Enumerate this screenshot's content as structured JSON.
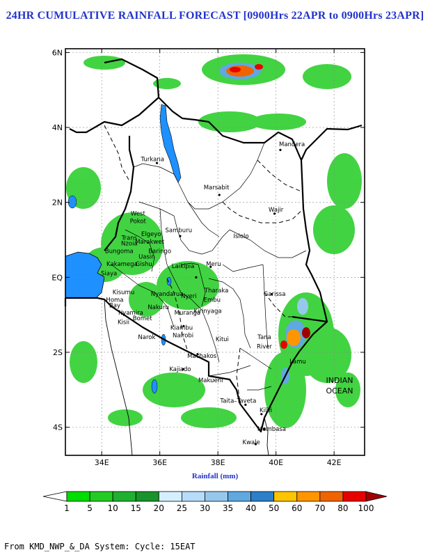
{
  "title": "24HR CUMULATIVE RAINFALL FORECAST [0900Hrs 22APR to 0900Hrs 23APR]",
  "x_axis_label": "Rainfall (mm)",
  "footer": "From KMD_NWP_&_DA System: Cycle: 15EAT",
  "lon_ticks": [
    "34E",
    "36E",
    "38E",
    "40E",
    "42E"
  ],
  "lat_ticks": [
    "6N",
    "4N",
    "2N",
    "EQ",
    "2S",
    "4S"
  ],
  "map_extent": {
    "lon": [
      32.75,
      43.05
    ],
    "lat": [
      -4.75,
      6.1
    ]
  },
  "ocean_label": [
    "INDIAN",
    "OCEAN"
  ],
  "places": [
    {
      "name": "Turkana",
      "lon": 35.75,
      "lat": 3.1
    },
    {
      "name": "Marsabit",
      "lon": 37.95,
      "lat": 2.35
    },
    {
      "name": "Mandera",
      "lon": 40.55,
      "lat": 3.5
    },
    {
      "name": "Wajir",
      "lon": 40.0,
      "lat": 1.75
    },
    {
      "name": "West",
      "lon": 35.25,
      "lat": 1.65
    },
    {
      "name": "Pokot",
      "lon": 35.25,
      "lat": 1.45
    },
    {
      "name": "Samburu",
      "lon": 36.65,
      "lat": 1.2
    },
    {
      "name": "Isiolo",
      "lon": 38.8,
      "lat": 1.05
    },
    {
      "name": "Elgeyo",
      "lon": 35.7,
      "lat": 1.1
    },
    {
      "name": "Marakwet",
      "lon": 35.65,
      "lat": 0.9
    },
    {
      "name": "Baringo",
      "lon": 36.0,
      "lat": 0.65
    },
    {
      "name": "Trans",
      "lon": 34.95,
      "lat": 1.0
    },
    {
      "name": "Nzoia",
      "lon": 34.95,
      "lat": 0.85
    },
    {
      "name": "Uasin",
      "lon": 35.55,
      "lat": 0.5
    },
    {
      "name": "Gishu",
      "lon": 35.45,
      "lat": 0.3
    },
    {
      "name": "Bungoma",
      "lon": 34.6,
      "lat": 0.65
    },
    {
      "name": "Kakamega",
      "lon": 34.7,
      "lat": 0.3
    },
    {
      "name": "Siaya",
      "lon": 34.25,
      "lat": 0.05
    },
    {
      "name": "Kisumu",
      "lon": 34.75,
      "lat": -0.45
    },
    {
      "name": "Homa",
      "lon": 34.45,
      "lat": -0.65
    },
    {
      "name": "Bay",
      "lon": 34.45,
      "lat": -0.8
    },
    {
      "name": "Kisii",
      "lon": 34.75,
      "lat": -1.25
    },
    {
      "name": "Nyamira",
      "lon": 35.0,
      "lat": -1.0
    },
    {
      "name": "Bomet",
      "lon": 35.4,
      "lat": -1.15
    },
    {
      "name": "Nakuru",
      "lon": 35.95,
      "lat": -0.85
    },
    {
      "name": "Nyandarua",
      "lon": 36.25,
      "lat": -0.5
    },
    {
      "name": "Laikipia",
      "lon": 36.8,
      "lat": 0.25
    },
    {
      "name": "Meru",
      "lon": 37.85,
      "lat": 0.3
    },
    {
      "name": "Nyeri",
      "lon": 37.0,
      "lat": -0.55
    },
    {
      "name": "Tharaka",
      "lon": 37.95,
      "lat": -0.4
    },
    {
      "name": "Embu",
      "lon": 37.8,
      "lat": -0.65
    },
    {
      "name": "Kirinyaga",
      "lon": 37.65,
      "lat": -0.95
    },
    {
      "name": "Muranga",
      "lon": 36.95,
      "lat": -1.0
    },
    {
      "name": "Kiambu",
      "lon": 36.75,
      "lat": -1.4
    },
    {
      "name": "Nairobi",
      "lon": 36.8,
      "lat": -1.6
    },
    {
      "name": "Narok",
      "lon": 35.55,
      "lat": -1.65
    },
    {
      "name": "Kitui",
      "lon": 38.15,
      "lat": -1.7
    },
    {
      "name": "Machakos",
      "lon": 37.45,
      "lat": -2.15
    },
    {
      "name": "Kajiado",
      "lon": 36.7,
      "lat": -2.5
    },
    {
      "name": "Makueni",
      "lon": 37.75,
      "lat": -2.8
    },
    {
      "name": "Garissa",
      "lon": 39.95,
      "lat": -0.5
    },
    {
      "name": "Tana",
      "lon": 39.6,
      "lat": -1.65
    },
    {
      "name": "River",
      "lon": 39.6,
      "lat": -1.9
    },
    {
      "name": "Lamu",
      "lon": 40.75,
      "lat": -2.3
    },
    {
      "name": "Taita–Taveta",
      "lon": 38.7,
      "lat": -3.35
    },
    {
      "name": "Kilifi",
      "lon": 39.65,
      "lat": -3.6
    },
    {
      "name": "Mombasa",
      "lon": 39.85,
      "lat": -4.1
    },
    {
      "name": "Kwale",
      "lon": 39.15,
      "lat": -4.45
    }
  ],
  "colorbar": {
    "levels": [
      "1",
      "5",
      "10",
      "15",
      "20",
      "25",
      "30",
      "35",
      "40",
      "50",
      "60",
      "70",
      "80",
      "100"
    ],
    "colors": [
      "#00dd00",
      "#22cc22",
      "#20b030",
      "#18942a",
      "#d6efff",
      "#b6dcfa",
      "#96c8ee",
      "#5fa8e0",
      "#2c7fc8",
      "#ffc400",
      "#ff9600",
      "#f06400",
      "#e80000",
      "#a00000"
    ],
    "below_color": "#ffffff",
    "above_color": "#a00000"
  },
  "water_color": "#1e90ff",
  "rain_color": "#22cc22"
}
